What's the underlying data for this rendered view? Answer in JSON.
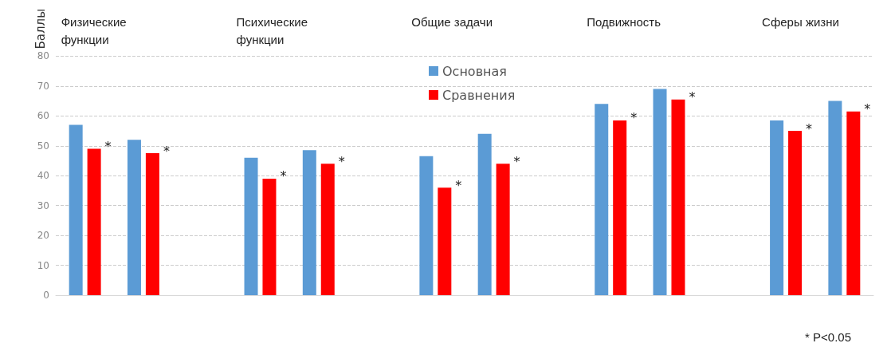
{
  "chart_data": {
    "type": "bar",
    "ylabel": "Баллы",
    "categories": [
      null,
      null,
      null,
      null,
      null,
      null,
      null,
      null,
      null,
      null,
      null,
      null,
      null,
      null
    ],
    "series": [
      {
        "name": "Основная",
        "color": "#5b9bd5",
        "values": [
          57,
          52,
          null,
          46,
          48.5,
          null,
          46.5,
          54,
          null,
          64,
          69,
          null,
          58.5,
          65
        ]
      },
      {
        "name": "Сравнения",
        "color": "#ff0000",
        "values": [
          49,
          47.5,
          null,
          39,
          44,
          null,
          36,
          44,
          null,
          58.5,
          65.5,
          null,
          55,
          61.5
        ],
        "value_labels": [
          "*",
          "*",
          null,
          "*",
          "*",
          null,
          "*",
          "*",
          null,
          "*",
          "*",
          null,
          "*",
          "*"
        ]
      }
    ],
    "annotations": [
      "Физические функции",
      "Психические функции",
      "Общие задачи",
      "Подвижность",
      "Сферы жизни",
      "* P<0.05"
    ],
    "ylim": [
      0,
      80
    ],
    "yticks": [
      0,
      10,
      20,
      30,
      40,
      50,
      60,
      70,
      80
    ],
    "grid": "y",
    "legend": "top"
  }
}
